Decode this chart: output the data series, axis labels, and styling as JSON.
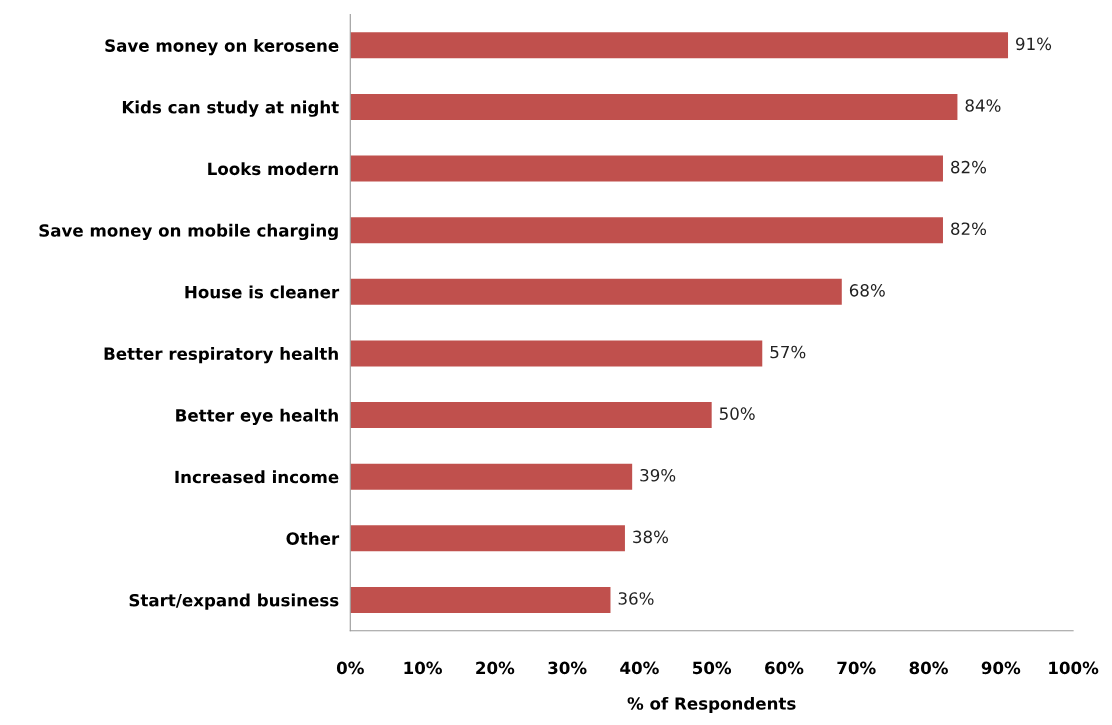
{
  "chart_data": {
    "type": "bar",
    "orientation": "horizontal",
    "xlabel": "% of Respondents",
    "categories": [
      "Save money on kerosene",
      "Kids can study at night",
      "Looks modern",
      "Save money on mobile charging",
      "House is cleaner",
      "Better respiratory health",
      "Better eye health",
      "Increased income",
      "Other",
      "Start/expand business"
    ],
    "values": [
      91,
      84,
      82,
      82,
      68,
      57,
      50,
      39,
      38,
      36
    ],
    "value_labels": [
      "91%",
      "84%",
      "82%",
      "82%",
      "68%",
      "57%",
      "50%",
      "39%",
      "38%",
      "36%"
    ],
    "color": "#c0504d",
    "xlim": [
      0,
      100
    ],
    "xticks": [
      {
        "value": 0,
        "label": "0%"
      },
      {
        "value": 10,
        "label": "10%"
      },
      {
        "value": 20,
        "label": "20%"
      },
      {
        "value": 30,
        "label": "30%"
      },
      {
        "value": 40,
        "label": "40%"
      },
      {
        "value": 50,
        "label": "50%"
      },
      {
        "value": 60,
        "label": "60%"
      },
      {
        "value": 70,
        "label": "70%"
      },
      {
        "value": 80,
        "label": "80%"
      },
      {
        "value": 90,
        "label": "90%"
      },
      {
        "value": 100,
        "label": "100%"
      }
    ],
    "grid": false
  }
}
